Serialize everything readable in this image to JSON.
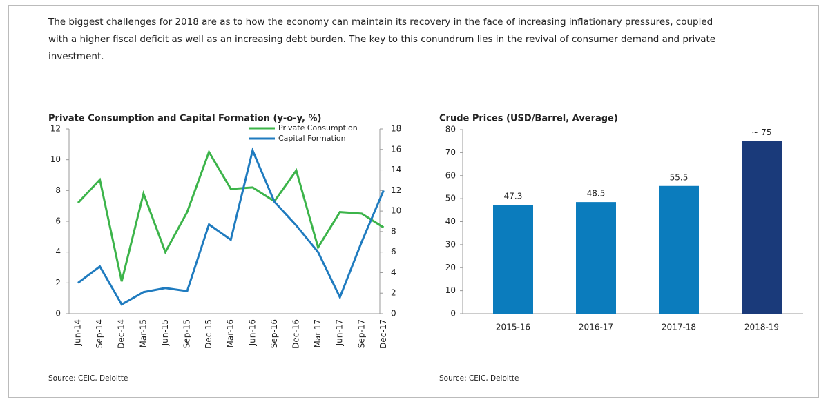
{
  "intro": "The biggest challenges for 2018 are as to how the economy can maintain its recovery in the face of increasing inflationary pressures, coupled with a higher fiscal deficit as well as an increasing debt burden. The key to this conundrum lies in the revival of consumer demand and private investment.",
  "chart_data": [
    {
      "type": "line",
      "title": "Private Consumption and Capital Formation (y-o-y, %)",
      "categories": [
        "Jun-14",
        "Sep-14",
        "Dec-14",
        "Mar-15",
        "Jun-15",
        "Sep-15",
        "Dec-15",
        "Mar-16",
        "Jun-16",
        "Sep-16",
        "Dec-16",
        "Mar-17",
        "Jun-17",
        "Sep-17",
        "Dec-17"
      ],
      "series": [
        {
          "name": "Private Consumption",
          "color": "#3cb44a",
          "values": [
            7.2,
            8.7,
            2.1,
            7.8,
            4.0,
            6.6,
            10.5,
            8.1,
            8.2,
            7.3,
            9.3,
            4.3,
            6.6,
            6.5,
            5.6
          ]
        },
        {
          "name": "Capital Formation",
          "color": "#1f7bbf",
          "axis": "y2",
          "values": [
            3.0,
            4.6,
            0.9,
            2.1,
            2.5,
            2.2,
            8.7,
            7.2,
            15.9,
            10.9,
            8.6,
            6.0,
            1.6,
            7.0,
            12.0
          ]
        }
      ],
      "ylim": [
        0,
        12
      ],
      "yticks": [
        0,
        2,
        4,
        6,
        8,
        10,
        12
      ],
      "y2lim": [
        0,
        18
      ],
      "y2ticks": [
        0,
        2,
        4,
        6,
        8,
        10,
        12,
        14,
        16,
        18
      ],
      "legend": "top-right",
      "source": "Source: CEIC, Deloitte"
    },
    {
      "type": "bar",
      "title": "Crude Prices (USD/Barrel, Average)",
      "categories": [
        "2015-16",
        "2016-17",
        "2017-18",
        "2018-19"
      ],
      "values": [
        47.3,
        48.5,
        55.5,
        75
      ],
      "value_labels": [
        "47.3",
        "48.5",
        "55.5",
        "~ 75"
      ],
      "colors": [
        "#0b7cbd",
        "#0b7cbd",
        "#0b7cbd",
        "#1a3a7a"
      ],
      "ylim": [
        0,
        80
      ],
      "yticks": [
        0,
        10,
        20,
        30,
        40,
        50,
        60,
        70,
        80
      ],
      "source": "Source: CEIC, Deloitte"
    }
  ]
}
